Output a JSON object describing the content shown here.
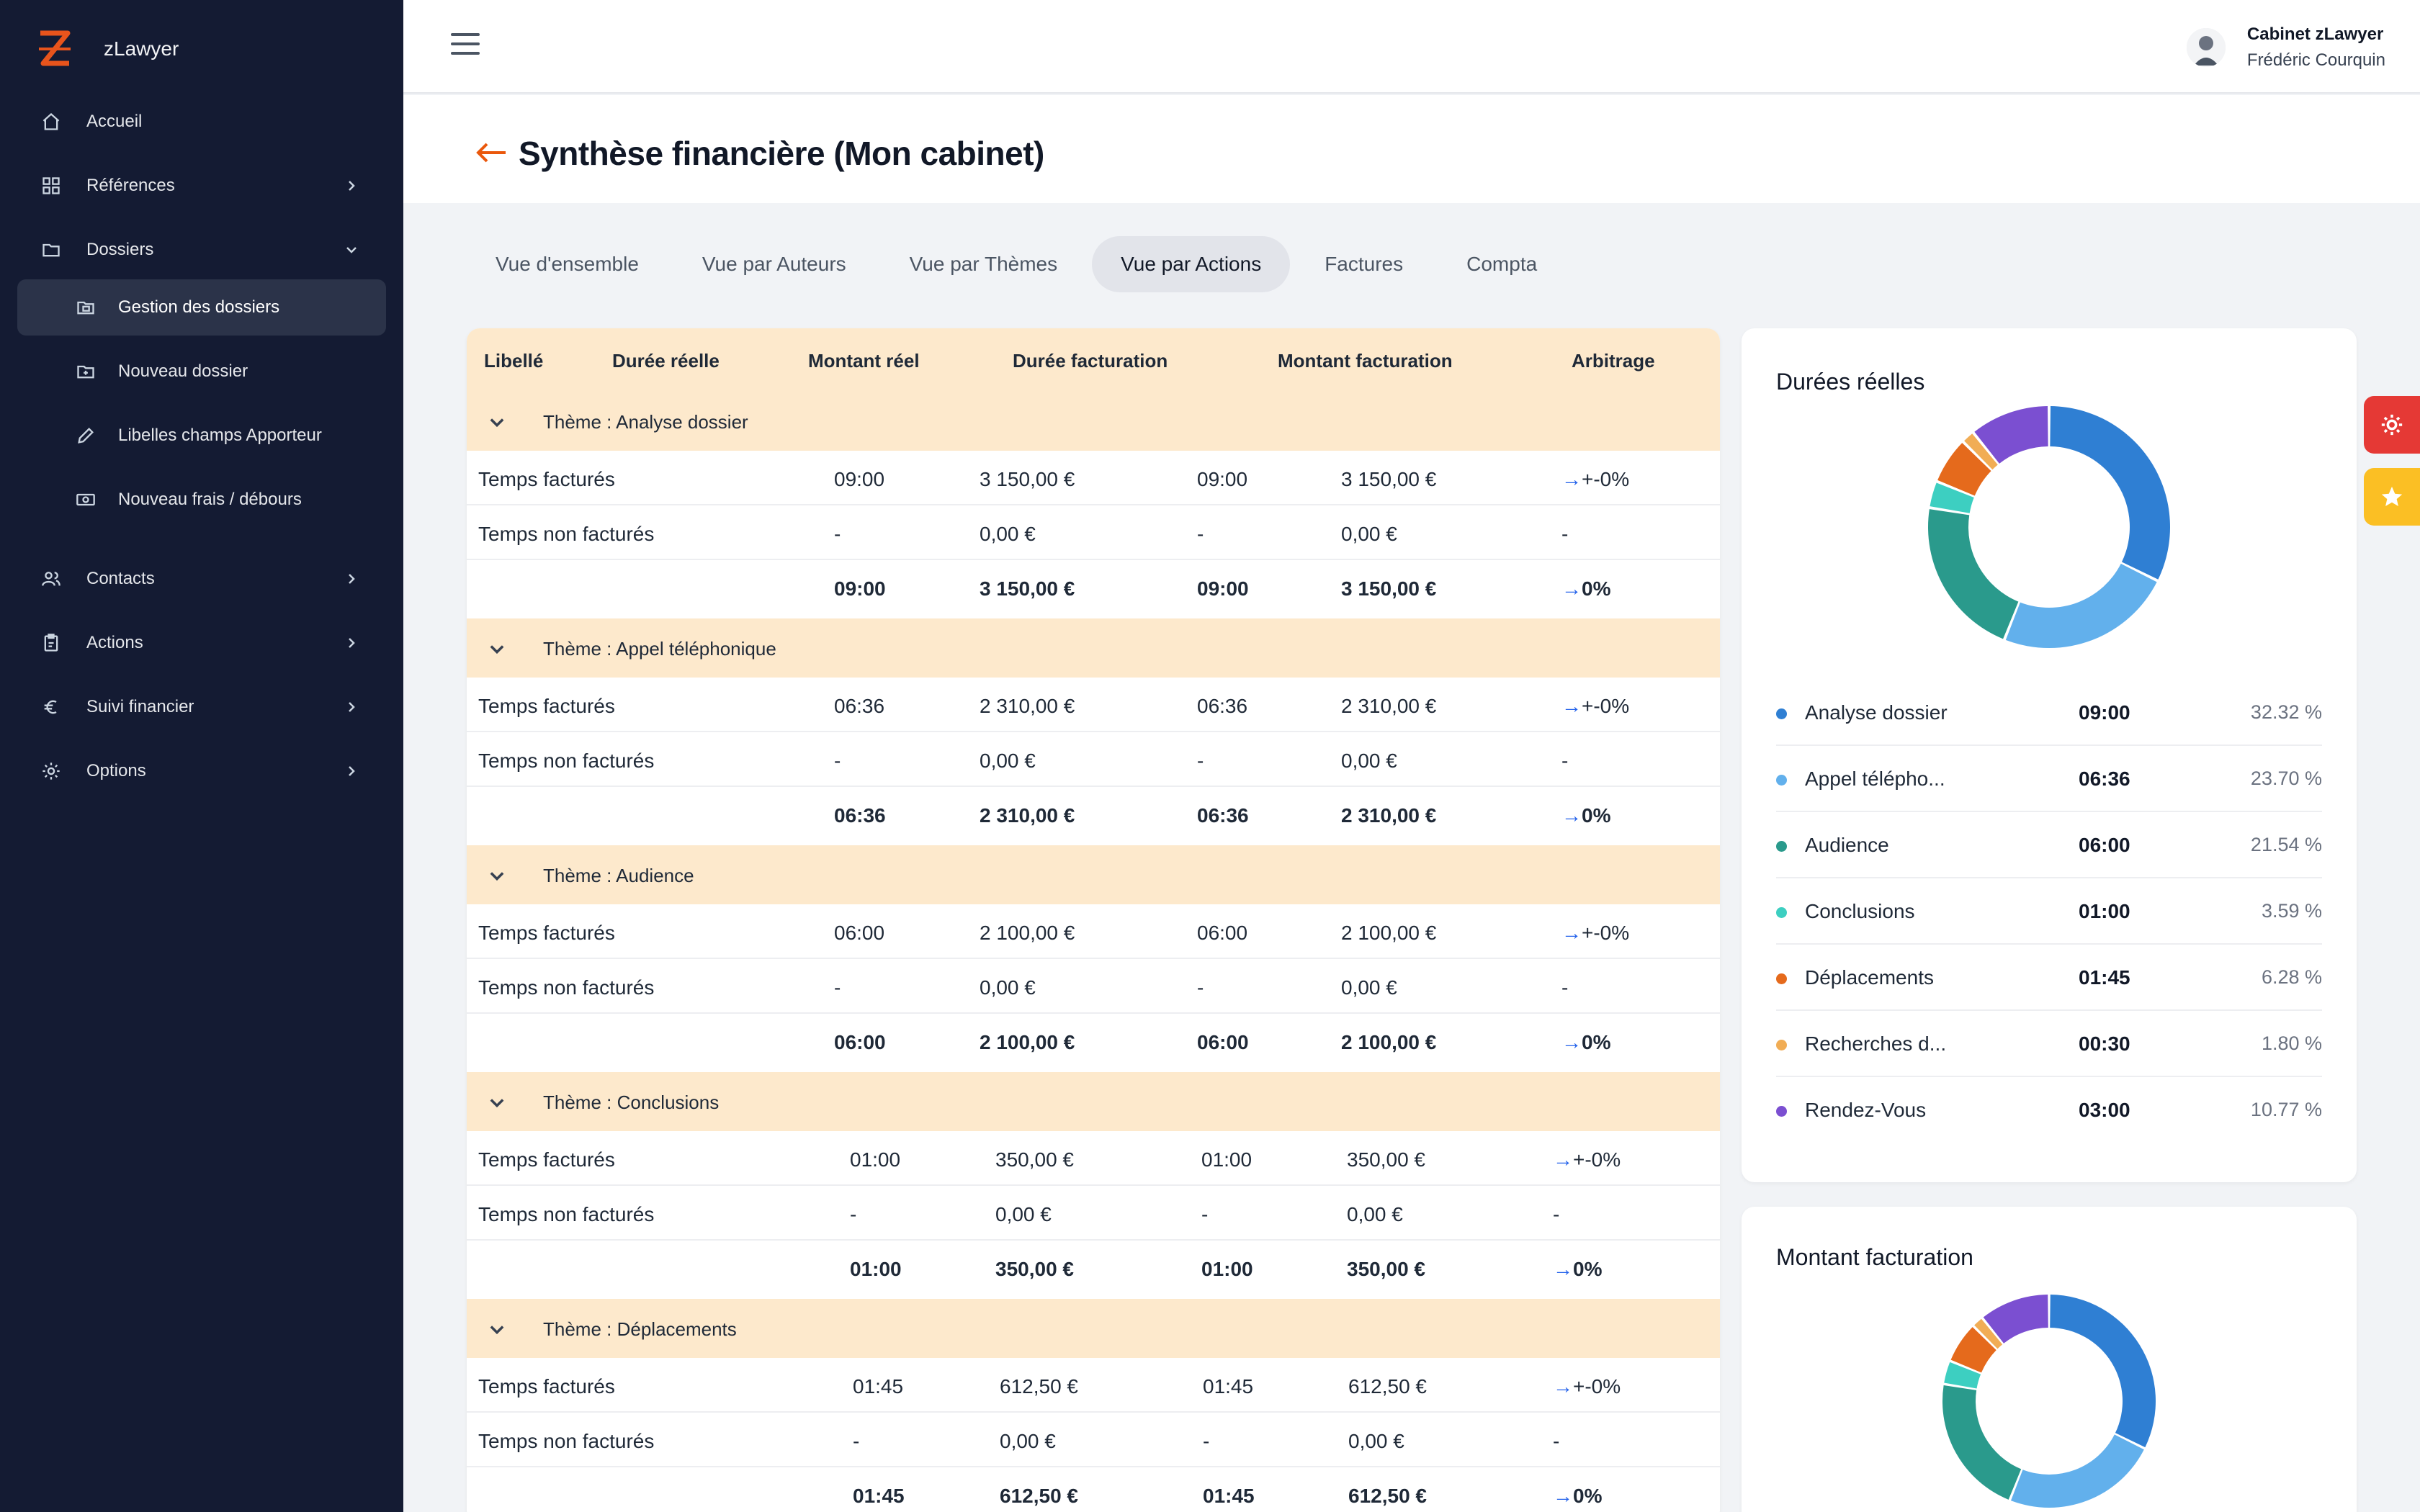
{
  "app": {
    "name": "zLawyer"
  },
  "sidebar": {
    "items": [
      {
        "label": "Accueil",
        "icon": "home-icon",
        "has_chevron": false
      },
      {
        "label": "Références",
        "icon": "grid-icon",
        "has_chevron": true
      },
      {
        "label": "Dossiers",
        "icon": "folder-icon",
        "has_chevron": true,
        "expanded": true
      },
      {
        "label": "Gestion des dossiers",
        "icon": "folder-open-icon",
        "sub": true,
        "active": true
      },
      {
        "label": "Nouveau dossier",
        "icon": "folder-plus-icon",
        "sub": true
      },
      {
        "label": "Libelles champs Apporteur",
        "icon": "pencil-icon",
        "sub": true
      },
      {
        "label": "Nouveau frais / débours",
        "icon": "banknote-icon",
        "sub": true
      },
      {
        "label": "Contacts",
        "icon": "users-icon",
        "has_chevron": true
      },
      {
        "label": "Actions",
        "icon": "clipboard-icon",
        "has_chevron": true
      },
      {
        "label": "Suivi financier",
        "icon": "euro-icon",
        "has_chevron": true
      },
      {
        "label": "Options",
        "icon": "gear-icon",
        "has_chevron": true
      }
    ]
  },
  "user": {
    "organization": "Cabinet zLawyer",
    "name": "Frédéric Courquin"
  },
  "page": {
    "title": "Synthèse financière (Mon cabinet)"
  },
  "tabs": [
    {
      "label": "Vue d'ensemble"
    },
    {
      "label": "Vue par Auteurs"
    },
    {
      "label": "Vue par Thèmes"
    },
    {
      "label": "Vue par Actions",
      "active": true
    },
    {
      "label": "Factures"
    },
    {
      "label": "Compta"
    }
  ],
  "table": {
    "headers": [
      "Libellé",
      "Durée réelle",
      "Montant réel",
      "Durée facturation",
      "Montant facturation",
      "Arbitrage"
    ],
    "groups": [
      {
        "title": "Thème : Analyse dossier",
        "rows": [
          [
            "Temps facturés",
            "09:00",
            "3 150,00 €",
            "09:00",
            "3 150,00 €",
            "→+-0%"
          ],
          [
            "Temps non facturés",
            "-",
            "0,00 €",
            "-",
            "0,00 €",
            "-"
          ]
        ],
        "total": [
          "09:00",
          "3 150,00 €",
          "09:00",
          "3 150,00 €",
          "→0%"
        ]
      },
      {
        "title": "Thème : Appel téléphonique",
        "rows": [
          [
            "Temps facturés",
            "06:36",
            "2 310,00 €",
            "06:36",
            "2 310,00 €",
            "→+-0%"
          ],
          [
            "Temps non facturés",
            "-",
            "0,00 €",
            "-",
            "0,00 €",
            "-"
          ]
        ],
        "total": [
          "06:36",
          "2 310,00 €",
          "06:36",
          "2 310,00 €",
          "→0%"
        ]
      },
      {
        "title": "Thème : Audience",
        "rows": [
          [
            "Temps facturés",
            "06:00",
            "2 100,00 €",
            "06:00",
            "2 100,00 €",
            "→+-0%"
          ],
          [
            "Temps non facturés",
            "-",
            "0,00 €",
            "-",
            "0,00 €",
            "-"
          ]
        ],
        "total": [
          "06:00",
          "2 100,00 €",
          "06:00",
          "2 100,00 €",
          "→0%"
        ]
      },
      {
        "title": "Thème : Conclusions",
        "rows": [
          [
            "Temps facturés",
            "01:00",
            "350,00 €",
            "01:00",
            "350,00 €",
            "→+-0%"
          ],
          [
            "Temps non facturés",
            "-",
            "0,00 €",
            "-",
            "0,00 €",
            "-"
          ]
        ],
        "total": [
          "01:00",
          "350,00 €",
          "01:00",
          "350,00 €",
          "→0%"
        ]
      },
      {
        "title": "Thème : Déplacements",
        "rows": [
          [
            "Temps facturés",
            "01:45",
            "612,50 €",
            "01:45",
            "612,50 €",
            "→+-0%"
          ],
          [
            "Temps non facturés",
            "-",
            "0,00 €",
            "-",
            "0,00 €",
            "-"
          ]
        ],
        "total": [
          "01:45",
          "612,50 €",
          "01:45",
          "612,50 €",
          "→0%"
        ]
      }
    ]
  },
  "donuts": [
    {
      "title": "Durées réelles",
      "legend": [
        {
          "name": "Analyse dossier",
          "value": "09:00",
          "pct": "32.32 %",
          "share": 32.32,
          "color": "#2f7fd3"
        },
        {
          "name": "Appel télépho...",
          "value": "06:36",
          "pct": "23.70 %",
          "share": 23.7,
          "color": "#62b0ec"
        },
        {
          "name": "Audience",
          "value": "06:00",
          "pct": "21.54 %",
          "share": 21.54,
          "color": "#2a9a8c"
        },
        {
          "name": "Conclusions",
          "value": "01:00",
          "pct": "3.59 %",
          "share": 3.59,
          "color": "#3dcfc1"
        },
        {
          "name": "Déplacements",
          "value": "01:45",
          "pct": "6.28 %",
          "share": 6.28,
          "color": "#e56a1c"
        },
        {
          "name": "Recherches d...",
          "value": "00:30",
          "pct": "1.80 %",
          "share": 1.8,
          "color": "#f1ad55"
        },
        {
          "name": "Rendez-Vous",
          "value": "03:00",
          "pct": "10.77 %",
          "share": 10.77,
          "color": "#7b4fd1"
        }
      ]
    },
    {
      "title": "Montant facturation",
      "slices": [
        {
          "share": 32.32,
          "color": "#2f7fd3"
        },
        {
          "share": 23.7,
          "color": "#62b0ec"
        },
        {
          "share": 21.54,
          "color": "#2a9a8c"
        },
        {
          "share": 3.59,
          "color": "#3dcfc1"
        },
        {
          "share": 6.28,
          "color": "#e56a1c"
        },
        {
          "share": 1.8,
          "color": "#f1ad55"
        },
        {
          "share": 10.77,
          "color": "#7b4fd1"
        }
      ]
    }
  ],
  "colors": {
    "sidebar_bg": "#141b33",
    "accent": "#ea580c",
    "table_header_bg": "#fde9cc",
    "settings_btn": "#e53935",
    "favorite_btn": "#fbbf24"
  }
}
